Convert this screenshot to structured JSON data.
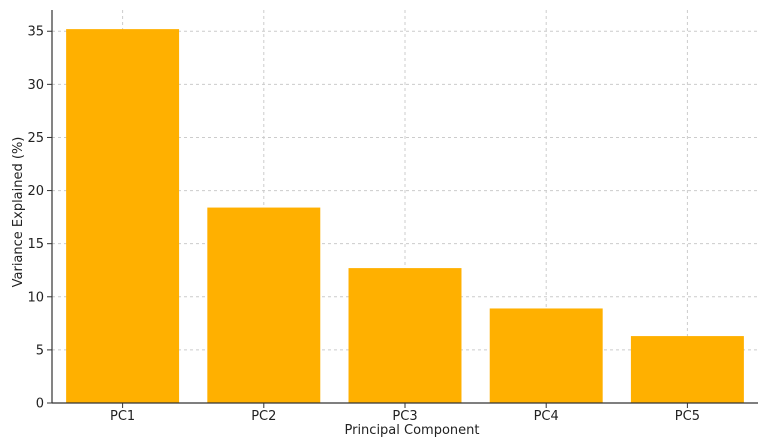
{
  "chart_data": {
    "type": "bar",
    "title": "",
    "xlabel": "Principal Component",
    "ylabel": "Variance Explained (%)",
    "categories": [
      "PC1",
      "PC2",
      "PC3",
      "PC4",
      "PC5"
    ],
    "values": [
      35.2,
      18.4,
      12.7,
      8.9,
      6.3
    ],
    "ylim": [
      0,
      37
    ],
    "yticks": [
      0,
      5,
      10,
      15,
      20,
      25,
      30,
      35
    ],
    "grid": true,
    "legend": "none",
    "bar_color": "#FFB000",
    "grid_color": "#cccccc",
    "axis_color": "#333333"
  }
}
